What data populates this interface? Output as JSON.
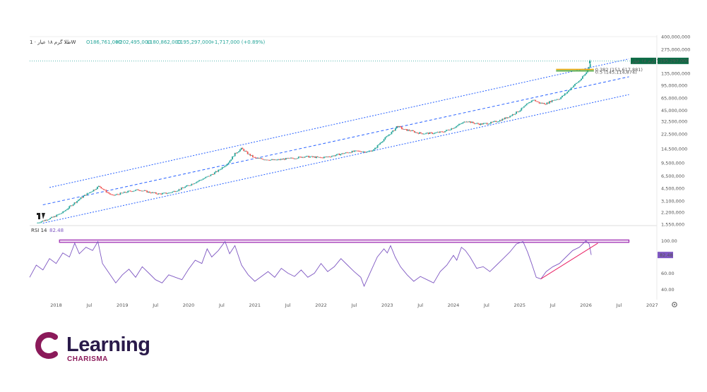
{
  "header": {
    "symbol": "طلا گرم ۱۸ عیار · 1W",
    "open": "O186,761,000",
    "high": "H202,495,000",
    "low": "L180,862,000",
    "close": "C195,297,000",
    "change": "+1,717,000 (+0.89%)"
  },
  "chart_data": {
    "type": "candlestick",
    "scale": "log",
    "timeframe": "1W",
    "ylim": [
      1550000,
      400000000
    ],
    "price_ticks": [
      "400,000,000",
      "275,000,000",
      "195,297,000",
      "135,000,000",
      "95,000,000",
      "65,000,000",
      "45,000,000",
      "32,500,000",
      "22,500,000",
      "14,500,000",
      "9,500,000",
      "6,500,000",
      "4,500,000",
      "3,100,000",
      "2,200,000",
      "1,550,000"
    ],
    "price_tick_values": [
      400000000,
      275000000,
      195297000,
      135000000,
      95000000,
      65000000,
      45000000,
      32500000,
      22500000,
      14500000,
      9500000,
      6500000,
      4500000,
      3100000,
      2200000,
      1550000
    ],
    "time_labels": [
      "2018",
      "Jul",
      "2019",
      "Jul",
      "2020",
      "Jul",
      "2021",
      "Jul",
      "2022",
      "Jul",
      "2023",
      "Jul",
      "2024",
      "Jul",
      "2025",
      "Jul",
      "2026",
      "Jul",
      "2027"
    ],
    "time_label_values": [
      2018.0,
      2018.5,
      2019.0,
      2019.5,
      2020.0,
      2020.5,
      2021.0,
      2021.5,
      2022.0,
      2022.5,
      2023.0,
      2023.5,
      2024.0,
      2024.5,
      2025.0,
      2025.5,
      2026.0,
      2026.5,
      2027.0
    ],
    "xlim": [
      2017.6,
      2027.05
    ],
    "price_path": [
      [
        2017.7,
        1.6
      ],
      [
        2017.95,
        1.9
      ],
      [
        2018.1,
        2.2
      ],
      [
        2018.25,
        2.8
      ],
      [
        2018.4,
        3.5
      ],
      [
        2018.55,
        4.2
      ],
      [
        2018.65,
        4.8
      ],
      [
        2018.75,
        4.1
      ],
      [
        2018.85,
        3.6
      ],
      [
        2019.0,
        3.9
      ],
      [
        2019.1,
        4.1
      ],
      [
        2019.25,
        4.3
      ],
      [
        2019.4,
        4.0
      ],
      [
        2019.55,
        3.8
      ],
      [
        2019.7,
        3.9
      ],
      [
        2019.85,
        4.3
      ],
      [
        2020.0,
        4.9
      ],
      [
        2020.15,
        5.6
      ],
      [
        2020.3,
        6.4
      ],
      [
        2020.45,
        7.6
      ],
      [
        2020.6,
        9.6
      ],
      [
        2020.7,
        12.5
      ],
      [
        2020.8,
        14.6
      ],
      [
        2020.9,
        12.4
      ],
      [
        2021.0,
        11.0
      ],
      [
        2021.15,
        10.6
      ],
      [
        2021.3,
        10.3
      ],
      [
        2021.45,
        10.7
      ],
      [
        2021.6,
        11.0
      ],
      [
        2021.75,
        11.5
      ],
      [
        2021.9,
        11.3
      ],
      [
        2022.0,
        11.1
      ],
      [
        2022.15,
        11.6
      ],
      [
        2022.3,
        12.4
      ],
      [
        2022.45,
        13.2
      ],
      [
        2022.55,
        13.5
      ],
      [
        2022.7,
        13.2
      ],
      [
        2022.8,
        14.1
      ],
      [
        2022.9,
        17.5
      ],
      [
        2023.0,
        21.0
      ],
      [
        2023.1,
        25.0
      ],
      [
        2023.15,
        28.5
      ],
      [
        2023.25,
        25.5
      ],
      [
        2023.35,
        24.8
      ],
      [
        2023.45,
        23.2
      ],
      [
        2023.55,
        22.8
      ],
      [
        2023.7,
        23.0
      ],
      [
        2023.85,
        24.0
      ],
      [
        2024.0,
        27.0
      ],
      [
        2024.1,
        30.0
      ],
      [
        2024.2,
        33.0
      ],
      [
        2024.3,
        31.0
      ],
      [
        2024.4,
        30.0
      ],
      [
        2024.55,
        31.0
      ],
      [
        2024.7,
        33.5
      ],
      [
        2024.85,
        38.0
      ],
      [
        2025.0,
        45.0
      ],
      [
        2025.1,
        53.0
      ],
      [
        2025.2,
        62.0
      ],
      [
        2025.3,
        56.0
      ],
      [
        2025.4,
        55.0
      ],
      [
        2025.5,
        61.0
      ],
      [
        2025.6,
        64.0
      ],
      [
        2025.7,
        75.0
      ],
      [
        2025.8,
        92.0
      ],
      [
        2025.9,
        108.0
      ],
      [
        2026.0,
        135.0
      ],
      [
        2026.04,
        160.0
      ],
      [
        2026.08,
        195.3
      ]
    ],
    "channel": {
      "upper": [
        [
          2017.9,
          4.6
        ],
        [
          2026.65,
          207.0
        ]
      ],
      "lower": [
        [
          2017.8,
          1.6
        ],
        [
          2026.65,
          72.0
        ]
      ],
      "mid": [
        [
          2017.8,
          2.75
        ],
        [
          2026.65,
          122.0
        ]
      ]
    },
    "fib_levels": [
      {
        "label": "0.382 (151,617,881)",
        "value": 151617881,
        "color": "#e0a000"
      },
      {
        "label": "0.5 (145,114,874)",
        "value": 145114874,
        "color": "#2e9e3e"
      }
    ],
    "last_price_tag": {
      "name": "طلا گرم ۱۸ عیار",
      "value": "195,297,000"
    },
    "rsi": {
      "label": "RSI 14",
      "value": "82.48",
      "ylim": [
        30,
        110
      ],
      "ticks": [
        "100.00",
        "60.00",
        "40.00"
      ],
      "tick_values": [
        100,
        60,
        40
      ],
      "path": [
        [
          2017.6,
          55
        ],
        [
          2017.7,
          70
        ],
        [
          2017.8,
          64
        ],
        [
          2017.9,
          78
        ],
        [
          2018.0,
          72
        ],
        [
          2018.1,
          85
        ],
        [
          2018.2,
          80
        ],
        [
          2018.28,
          97
        ],
        [
          2018.35,
          84
        ],
        [
          2018.45,
          92
        ],
        [
          2018.55,
          88
        ],
        [
          2018.63,
          99
        ],
        [
          2018.7,
          72
        ],
        [
          2018.8,
          60
        ],
        [
          2018.9,
          48
        ],
        [
          2019.0,
          58
        ],
        [
          2019.1,
          65
        ],
        [
          2019.2,
          55
        ],
        [
          2019.3,
          68
        ],
        [
          2019.4,
          60
        ],
        [
          2019.5,
          52
        ],
        [
          2019.6,
          48
        ],
        [
          2019.7,
          58
        ],
        [
          2019.8,
          55
        ],
        [
          2019.9,
          52
        ],
        [
          2020.0,
          65
        ],
        [
          2020.1,
          76
        ],
        [
          2020.2,
          72
        ],
        [
          2020.28,
          90
        ],
        [
          2020.35,
          80
        ],
        [
          2020.45,
          88
        ],
        [
          2020.55,
          99
        ],
        [
          2020.62,
          84
        ],
        [
          2020.7,
          94
        ],
        [
          2020.8,
          70
        ],
        [
          2020.9,
          58
        ],
        [
          2021.0,
          50
        ],
        [
          2021.1,
          56
        ],
        [
          2021.2,
          62
        ],
        [
          2021.3,
          55
        ],
        [
          2021.4,
          66
        ],
        [
          2021.5,
          60
        ],
        [
          2021.6,
          56
        ],
        [
          2021.7,
          64
        ],
        [
          2021.8,
          55
        ],
        [
          2021.9,
          60
        ],
        [
          2022.0,
          72
        ],
        [
          2022.1,
          62
        ],
        [
          2022.2,
          68
        ],
        [
          2022.3,
          78
        ],
        [
          2022.4,
          70
        ],
        [
          2022.5,
          62
        ],
        [
          2022.6,
          55
        ],
        [
          2022.65,
          44
        ],
        [
          2022.75,
          62
        ],
        [
          2022.85,
          80
        ],
        [
          2022.95,
          90
        ],
        [
          2023.0,
          85
        ],
        [
          2023.05,
          94
        ],
        [
          2023.12,
          80
        ],
        [
          2023.2,
          68
        ],
        [
          2023.3,
          58
        ],
        [
          2023.4,
          50
        ],
        [
          2023.5,
          56
        ],
        [
          2023.6,
          52
        ],
        [
          2023.7,
          48
        ],
        [
          2023.8,
          62
        ],
        [
          2023.9,
          70
        ],
        [
          2024.0,
          82
        ],
        [
          2024.05,
          76
        ],
        [
          2024.12,
          92
        ],
        [
          2024.18,
          88
        ],
        [
          2024.25,
          80
        ],
        [
          2024.35,
          66
        ],
        [
          2024.45,
          68
        ],
        [
          2024.55,
          62
        ],
        [
          2024.65,
          70
        ],
        [
          2024.75,
          78
        ],
        [
          2024.85,
          86
        ],
        [
          2024.95,
          96
        ],
        [
          2025.05,
          99
        ],
        [
          2025.12,
          86
        ],
        [
          2025.18,
          72
        ],
        [
          2025.25,
          55
        ],
        [
          2025.32,
          53
        ],
        [
          2025.4,
          62
        ],
        [
          2025.5,
          68
        ],
        [
          2025.6,
          72
        ],
        [
          2025.7,
          80
        ],
        [
          2025.8,
          88
        ],
        [
          2025.9,
          92
        ],
        [
          2026.0,
          100
        ],
        [
          2026.05,
          96
        ],
        [
          2026.08,
          82.48
        ]
      ],
      "band_top": 101,
      "band_bottom": 98,
      "trendline": [
        [
          2025.32,
          53
        ],
        [
          2026.18,
          97
        ]
      ]
    }
  },
  "brand": {
    "name": "Learning",
    "tagline": "CHARISMA"
  },
  "colors": {
    "up": "#26a69a",
    "down": "#ef5350",
    "channel": "#2962ff",
    "rsi": "#7e57c2",
    "rsi_band": "#9c27b0",
    "trend": "#e91e63",
    "tag": "#0d6b45",
    "brand_dark": "#2a1a4a",
    "brand_accent": "#8b1a5a"
  }
}
